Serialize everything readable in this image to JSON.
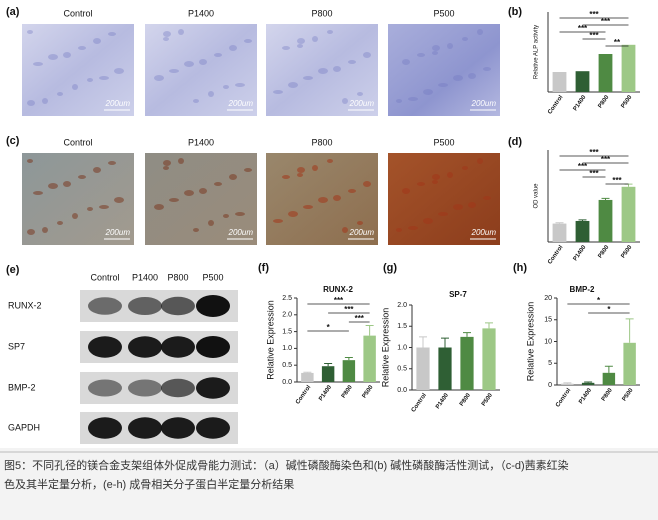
{
  "panels": [
    {
      "label": "(a)",
      "images": [
        "Control",
        "P1400",
        "P800",
        "P500"
      ],
      "scale": "200um"
    },
    {
      "label": "(c)",
      "images": [
        "Control",
        "P1400",
        "P800",
        "P500"
      ],
      "scale": "200um"
    }
  ],
  "blot": {
    "label": "(e)",
    "lanes": [
      "Control",
      "P1400",
      "P800",
      "P500"
    ],
    "rows": [
      "RUNX-2",
      "SP7",
      "BMP-2",
      "GAPDH"
    ]
  },
  "chart_data": [
    {
      "type": "bar",
      "label": "(b)",
      "ylabel": "Relative ALP activity",
      "categories": [
        "Control",
        "P1400",
        "P800",
        "P500"
      ],
      "values": [
        0.5,
        0.52,
        0.95,
        1.18
      ],
      "colors": [
        "#c8c8c8",
        "#2f5f34",
        "#4f8a43",
        "#9dc886"
      ],
      "ylim": [
        0,
        2
      ],
      "annotations": [
        {
          "text": "***",
          "from": "Control",
          "to": "P500"
        },
        {
          "text": "***",
          "from": "P1400",
          "to": "P500"
        },
        {
          "text": "***",
          "from": "Control",
          "to": "P800"
        },
        {
          "text": "***",
          "from": "P1400",
          "to": "P800"
        },
        {
          "text": "**",
          "from": "P800",
          "to": "P500"
        }
      ]
    },
    {
      "type": "bar",
      "label": "(d)",
      "ylabel": "OD value",
      "categories": [
        "Control",
        "P1400",
        "P800",
        "P500"
      ],
      "values": [
        0.7,
        0.8,
        1.6,
        2.1
      ],
      "errors": [
        0.03,
        0.04,
        0.06,
        0.1
      ],
      "colors": [
        "#c8c8c8",
        "#2f5f34",
        "#4f8a43",
        "#9dc886"
      ],
      "ylim": [
        0,
        3.5
      ],
      "annotations": [
        {
          "text": "***",
          "from": "Control",
          "to": "P500"
        },
        {
          "text": "***",
          "from": "P1400",
          "to": "P500"
        },
        {
          "text": "***",
          "from": "Control",
          "to": "P800"
        },
        {
          "text": "***",
          "from": "P1400",
          "to": "P800"
        },
        {
          "text": "***",
          "from": "P800",
          "to": "P500"
        }
      ]
    },
    {
      "type": "bar",
      "label": "(f)",
      "title": "RUNX-2",
      "ylabel": "Relative Expression",
      "categories": [
        "Control",
        "P1400",
        "P800",
        "P500"
      ],
      "values": [
        0.27,
        0.47,
        0.65,
        1.38
      ],
      "errors": [
        0.02,
        0.08,
        0.08,
        0.3
      ],
      "colors": [
        "#c8c8c8",
        "#2f5f34",
        "#4f8a43",
        "#9dc886"
      ],
      "ylim": [
        0,
        2.5
      ],
      "yticks": [
        {
          "value": 0,
          "label": "0.0"
        },
        0.5,
        {
          "value": 1,
          "label": "1.0"
        },
        1.5,
        {
          "value": 2,
          "label": "2.0"
        },
        2.5
      ],
      "annotations": [
        {
          "text": "***",
          "from": "Control",
          "to": "P500"
        },
        {
          "text": "***",
          "from": "P1400",
          "to": "P500"
        },
        {
          "text": "***",
          "from": "P800",
          "to": "P500"
        },
        {
          "text": "*",
          "from": "Control",
          "to": "P800"
        }
      ]
    },
    {
      "type": "bar",
      "label": "(g)",
      "title": "SP-7",
      "ylabel": "Relative Expression",
      "categories": [
        "Control",
        "P1400",
        "P800",
        "P500"
      ],
      "values": [
        1.0,
        1.0,
        1.25,
        1.45
      ],
      "errors": [
        0.25,
        0.22,
        0.1,
        0.13
      ],
      "colors": [
        "#c8c8c8",
        "#2f5f34",
        "#4f8a43",
        "#9dc886"
      ],
      "ylim": [
        0,
        2
      ],
      "yticks": [
        {
          "value": 0,
          "label": "0.0"
        },
        0.5,
        {
          "value": 1,
          "label": "1.0"
        },
        1.5,
        {
          "value": 2,
          "label": "2.0"
        }
      ],
      "annotations": []
    },
    {
      "type": "bar",
      "label": "(h)",
      "title": "BMP-2",
      "ylabel": "Relative Expression",
      "categories": [
        "Control",
        "P1400",
        "P800",
        "P500"
      ],
      "values": [
        0.3,
        0.5,
        2.8,
        9.7
      ],
      "errors": [
        0.2,
        0.2,
        1.5,
        5.5
      ],
      "colors": [
        "#c8c8c8",
        "#2f5f34",
        "#4f8a43",
        "#9dc886"
      ],
      "ylim": [
        0,
        20
      ],
      "yticks": [
        0,
        5,
        10,
        15,
        20
      ],
      "annotations": [
        {
          "text": "*",
          "from": "Control",
          "to": "P500"
        },
        {
          "text": "*",
          "from": "P1400",
          "to": "P500"
        }
      ]
    }
  ],
  "caption": [
    "图5：不同孔径的镁合金支架组体外促成骨能力测试：（a）碱性磷酸酶染色和(b) 碱性磷酸酶活性测试，（c-d)茜素红染",
    "色及其半定量分析，(e-h) 成骨相关分子蛋白半定量分析结果"
  ]
}
